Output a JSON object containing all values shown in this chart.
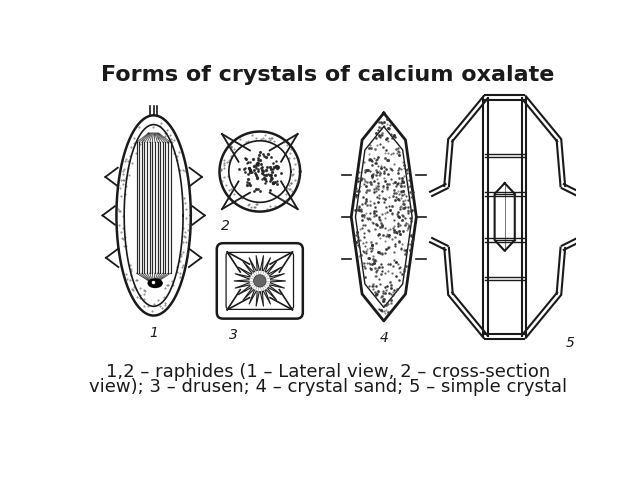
{
  "title": "Forms of crystals of calcium oxalate",
  "title_fontsize": 16,
  "title_fontweight": "bold",
  "caption_line1": "1,2 – raphides (1 – Lateral view, 2 – cross-section",
  "caption_line2": "view); 3 – drusen; 4 – crystal sand; 5 – simple crystal",
  "caption_fontsize": 13,
  "bg_color": "#ffffff",
  "line_color": "#1a1a1a",
  "fig_width": 6.4,
  "fig_height": 4.8,
  "dpi": 100
}
